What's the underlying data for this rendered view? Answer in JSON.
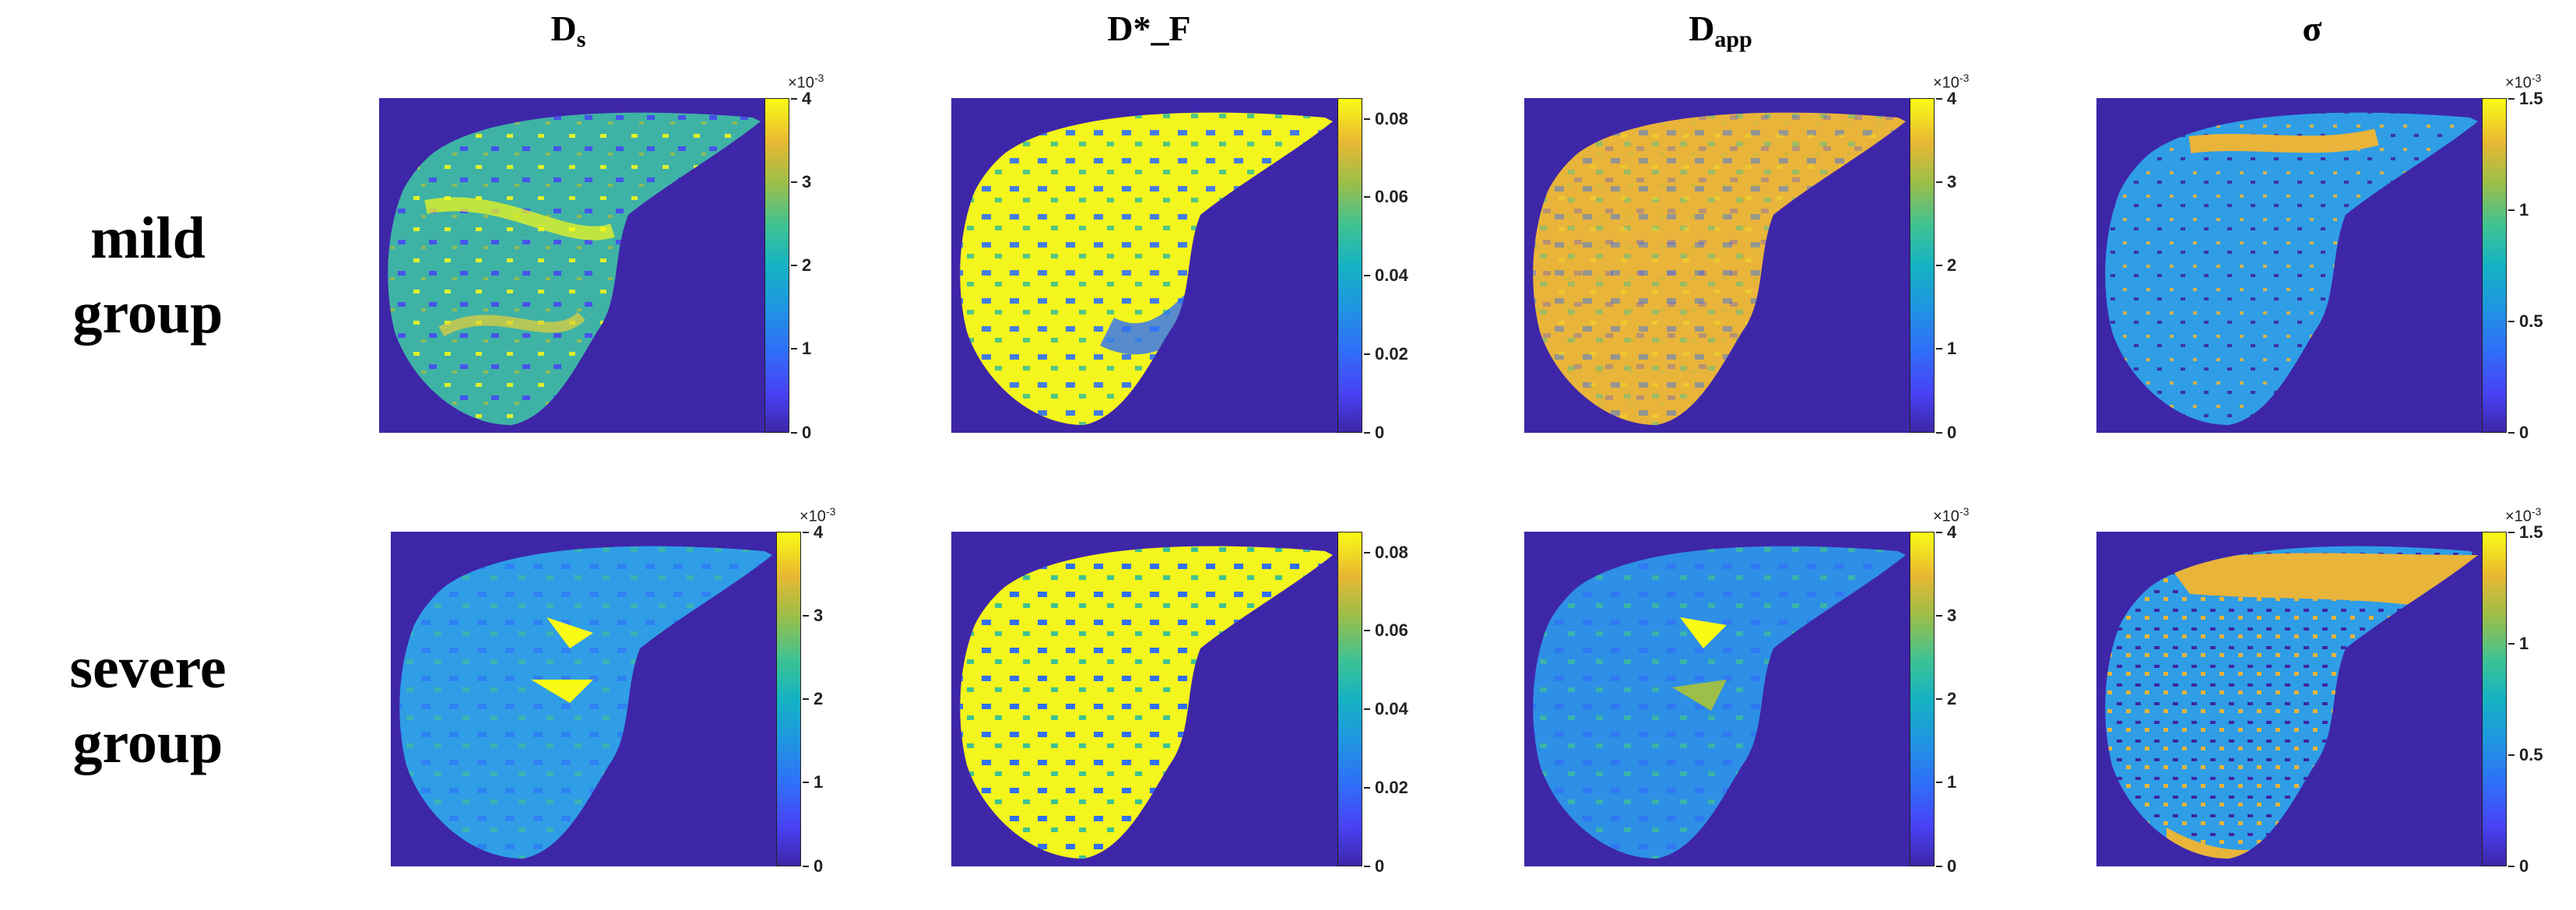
{
  "columns": {
    "ds_main": "D",
    "ds_sub": "s",
    "dstar": "D*_F",
    "dapp_main": "D",
    "dapp_sub": "app",
    "sigma": "σ"
  },
  "rows": {
    "mild_line1": "mild",
    "mild_line2": "group",
    "severe_line1": "severe",
    "severe_line2": "group"
  },
  "colorbars": {
    "ds": {
      "ticks": [
        "4",
        "3",
        "2",
        "1",
        "0"
      ],
      "exponent_base": "×10",
      "exponent_power": "-3"
    },
    "dstar": {
      "ticks": [
        "0.08",
        "0.06",
        "0.04",
        "0.02",
        "0"
      ]
    },
    "dapp": {
      "ticks": [
        "4",
        "3",
        "2",
        "1",
        "0"
      ],
      "exponent_base": "×10",
      "exponent_power": "-3"
    },
    "sigma": {
      "ticks": [
        "1.5",
        "1",
        "0.5",
        "0"
      ],
      "exponent_base": "×10",
      "exponent_power": "-3"
    }
  },
  "colors": {
    "background_map": "#3e26a8",
    "mild_ds": "#3fb2a6",
    "mild_dstar": "#f3f51c",
    "mild_dapp": "#e9b43a",
    "mild_sigma": "#2f9ee6",
    "severe_ds": "#2f9ee6",
    "severe_dstar": "#f3f51c",
    "severe_dapp": "#2e8fe6",
    "severe_sigma": "#2f9ee6",
    "accent_yellow": "#f9fb15",
    "accent_orange": "#e9b43a",
    "accent_blue": "#2f70f8"
  }
}
